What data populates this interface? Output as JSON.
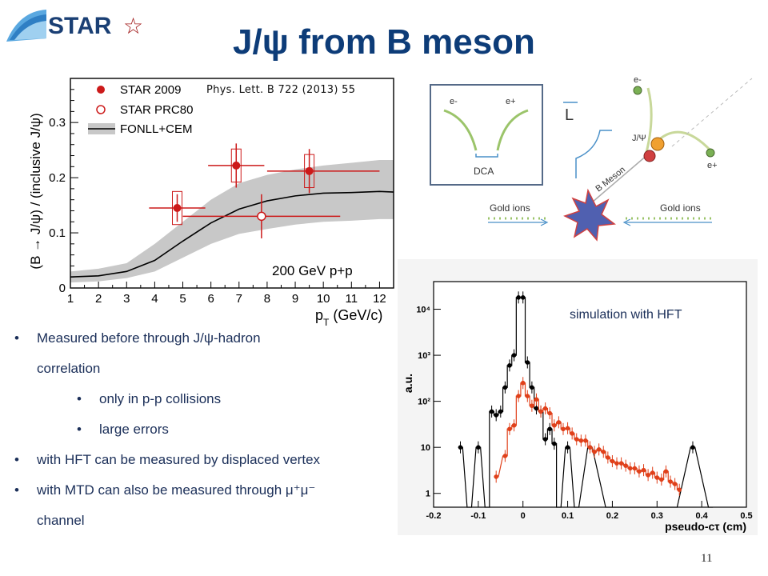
{
  "header": {
    "logo_text": "STAR",
    "logo_star": "☆",
    "title": "J/ψ from B meson"
  },
  "reference": "Phys. Lett. B 722 (2013) 55",
  "chart_data": [
    {
      "type": "scatter",
      "xlabel": "p_T (GeV/c)",
      "ylabel": "(B → J/ψ) / (inclusive J/ψ)",
      "xlim": [
        1,
        12.5
      ],
      "ylim": [
        0,
        0.38
      ],
      "xticks": [
        "1",
        "2",
        "3",
        "4",
        "5",
        "6",
        "7",
        "8",
        "9",
        "10",
        "11",
        "12"
      ],
      "yticks": [
        "0",
        "0.1",
        "0.2",
        "0.3"
      ],
      "legend": [
        "STAR 2009",
        "STAR PRC80",
        "FONLL+CEM"
      ],
      "legend_position": "top-left",
      "annotation": "200 GeV p+p",
      "series": [
        {
          "name": "STAR 2009",
          "points": [
            {
              "x": 4.8,
              "y": 0.145,
              "xerr": [
                1.0,
                1.0
              ],
              "yerr": 0.025,
              "syst": 0.03
            },
            {
              "x": 6.9,
              "y": 0.222,
              "xerr": [
                1.0,
                1.0
              ],
              "yerr": 0.04,
              "syst": 0.03
            },
            {
              "x": 9.5,
              "y": 0.212,
              "xerr": [
                1.5,
                2.5
              ],
              "yerr": 0.04,
              "syst": 0.03
            }
          ]
        },
        {
          "name": "STAR PRC80",
          "points": [
            {
              "x": 7.8,
              "y": 0.13,
              "xerr": [
                2.8,
                2.8
              ],
              "yerr": 0.04
            }
          ]
        },
        {
          "name": "FONLL+CEM",
          "x": [
            1,
            2,
            3,
            4,
            5,
            6,
            7,
            8,
            9,
            10,
            11,
            12,
            12.5
          ],
          "y": [
            0.02,
            0.022,
            0.03,
            0.05,
            0.085,
            0.118,
            0.143,
            0.158,
            0.167,
            0.172,
            0.173,
            0.175,
            0.174
          ],
          "band_low": [
            0.01,
            0.012,
            0.018,
            0.03,
            0.055,
            0.08,
            0.098,
            0.107,
            0.115,
            0.12,
            0.122,
            0.125,
            0.125
          ],
          "band_high": [
            0.03,
            0.035,
            0.045,
            0.08,
            0.12,
            0.16,
            0.19,
            0.205,
            0.215,
            0.222,
            0.227,
            0.232,
            0.232
          ]
        }
      ]
    },
    {
      "type": "line",
      "ylabel": "a.u.",
      "xlabel": "pseudo-cτ (cm)",
      "xlim": [
        -0.2,
        0.5
      ],
      "ylim_log10": [
        -0.3,
        4.6
      ],
      "xticks": [
        "-0.2",
        "-0.1",
        "0",
        "0.1",
        "0.2",
        "0.3",
        "0.4",
        "0.5"
      ],
      "yticks": [
        "1",
        "10",
        "10²",
        "10³",
        "10⁴"
      ],
      "annotation": "simulation with HFT",
      "series": [
        {
          "name": "",
          "color": "#000000",
          "x": [
            -0.14,
            -0.12,
            -0.1,
            -0.08,
            -0.07,
            -0.06,
            -0.05,
            -0.04,
            -0.03,
            -0.02,
            -0.01,
            0,
            0.01,
            0.02,
            0.03,
            0.04,
            0.05,
            0.06,
            0.07,
            0.08,
            0.1,
            0.12,
            0.15,
            0.19,
            0.22,
            0.26,
            0.3,
            0.34,
            0.38,
            0.42
          ],
          "y": [
            10,
            0.3,
            10,
            0.3,
            60,
            50,
            60,
            200,
            600,
            1000,
            18000,
            18000,
            700,
            200,
            70,
            60,
            15,
            25,
            12,
            0.3,
            10,
            0.3,
            10,
            0.3,
            0.3,
            0.3,
            0.3,
            0.3,
            10,
            0.3
          ]
        },
        {
          "name": "",
          "color": "#e0401a",
          "x": [
            -0.06,
            -0.04,
            -0.03,
            -0.02,
            -0.01,
            0,
            0.01,
            0.02,
            0.03,
            0.04,
            0.05,
            0.06,
            0.07,
            0.08,
            0.09,
            0.1,
            0.11,
            0.12,
            0.13,
            0.14,
            0.15,
            0.16,
            0.17,
            0.18,
            0.19,
            0.2,
            0.21,
            0.22,
            0.23,
            0.24,
            0.25,
            0.26,
            0.27,
            0.28,
            0.29,
            0.3,
            0.31,
            0.32,
            0.33,
            0.34,
            0.35
          ],
          "y": [
            2.3,
            6.5,
            25,
            30,
            130,
            250,
            130,
            80,
            110,
            60,
            70,
            55,
            30,
            35,
            25,
            26,
            20,
            15,
            14,
            14,
            10,
            8,
            9,
            8,
            6,
            5,
            4.5,
            4.5,
            4,
            3.5,
            3.5,
            3,
            3.2,
            2.5,
            2.8,
            2.2,
            2,
            3,
            1.8,
            1.6,
            1.2
          ]
        }
      ]
    }
  ],
  "diagram": {
    "dca_labels": {
      "e_minus": "e-",
      "e_plus": "e+",
      "dca": "DCA"
    },
    "L_label": "L",
    "jpsi_label": "J/Ψ",
    "e_minus_label": "e-",
    "e_plus_label": "e+",
    "b_meson_label": "B Meson",
    "gold_left": "Gold ions",
    "gold_right": "Gold ions"
  },
  "bullets": [
    {
      "text": "Measured before through J/ψ-hadron",
      "level": 0,
      "dot": "•"
    },
    {
      "text": "correlation",
      "level": "cont",
      "dot": ""
    },
    {
      "text": "only in p-p collisions",
      "level": 1,
      "dot": "•"
    },
    {
      "text": "large errors",
      "level": 1,
      "dot": "•"
    },
    {
      "text": "with HFT can be measured by displaced vertex",
      "level": 0,
      "dot": "•"
    },
    {
      "text": "with MTD can also be measured through μ⁺μ⁻",
      "level": 0,
      "dot": "•"
    },
    {
      "text": "channel",
      "level": "cont",
      "dot": ""
    }
  ],
  "page_number": "11",
  "colors": {
    "title": "#0d3c78",
    "bullet_text": "#1a2e58",
    "data_red": "#cc1a1a",
    "band": "#c8c8c8"
  }
}
